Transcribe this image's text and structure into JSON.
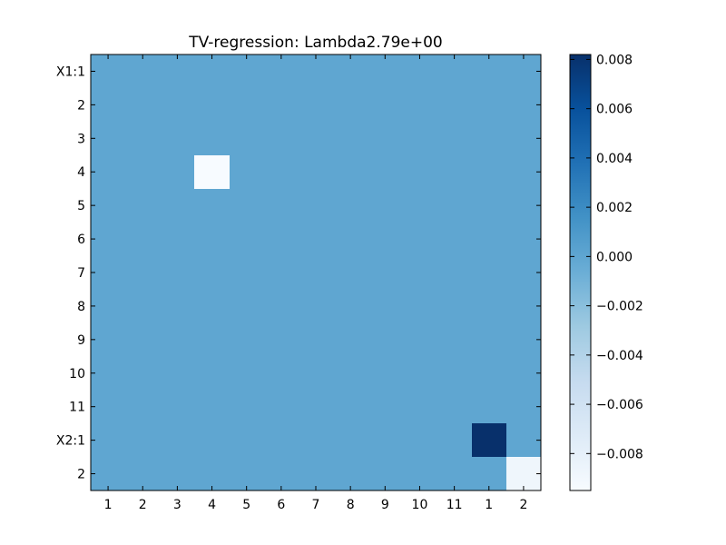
{
  "chart_data": {
    "type": "heatmap",
    "title": "TV-regression: Lambda2.79e+00",
    "xlabel": "",
    "ylabel": "",
    "x_tick_labels": [
      "1",
      "2",
      "3",
      "4",
      "5",
      "6",
      "7",
      "8",
      "9",
      "10",
      "11",
      "1",
      "2"
    ],
    "y_tick_labels": [
      "X1:1",
      "2",
      "3",
      "4",
      "5",
      "6",
      "7",
      "8",
      "9",
      "10",
      "11",
      "X2:1",
      "2"
    ],
    "base_value": 0.0,
    "cells": [
      {
        "row": 3,
        "col": 3,
        "value": -0.0095
      },
      {
        "row": 11,
        "col": 11,
        "value": 0.0082
      },
      {
        "row": 12,
        "col": 12,
        "value": -0.0088
      }
    ],
    "vmin": -0.0095,
    "vmax": 0.0082,
    "colormap": "Blues",
    "colorbar": {
      "ticks": [
        0.008,
        0.006,
        0.004,
        0.002,
        0.0,
        -0.002,
        -0.004,
        -0.006,
        -0.008
      ],
      "tick_labels": [
        "0.008",
        "0.006",
        "0.004",
        "0.002",
        "0.000",
        "−0.002",
        "−0.004",
        "−0.006",
        "−0.008"
      ]
    }
  }
}
